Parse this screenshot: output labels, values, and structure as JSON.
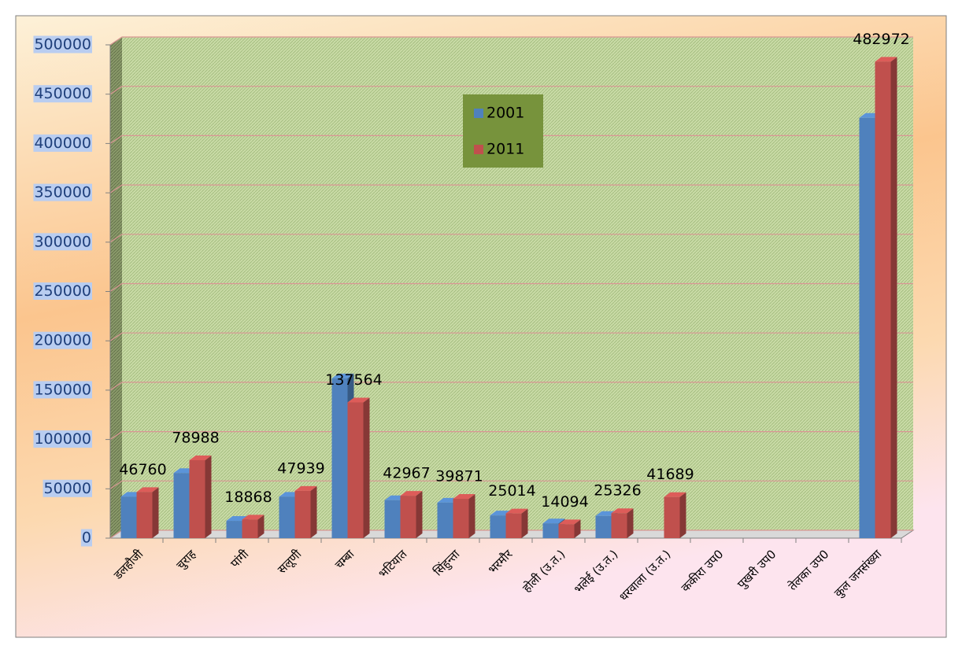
{
  "chart_data": {
    "type": "bar3d",
    "categories": [
      "डलहौजी",
      "चुराह",
      "पांगी",
      "सलूणी",
      "चम्बा",
      "भटियात",
      "सिंहुन्ता",
      "भरमौर",
      "होली (उ.त.)",
      "भलेई (उ.त.)",
      "धरवाला (उ.त.)",
      "ककीरा  उप0",
      "पुखरी उप0",
      "तेलका उप0",
      "कुल जनसंख्या"
    ],
    "series": [
      {
        "name": "2001",
        "color": "#4f81bd",
        "show_values": false,
        "values": [
          42000,
          66000,
          17500,
          42000,
          162000,
          38500,
          36000,
          23000,
          15000,
          22500,
          null,
          null,
          null,
          null,
          426000
        ]
      },
      {
        "name": "2011",
        "color": "#c0504d",
        "show_values": true,
        "values": [
          46760,
          78988,
          18868,
          47939,
          137564,
          42967,
          39871,
          25014,
          14094,
          25326,
          41689,
          null,
          null,
          null,
          482972
        ]
      }
    ],
    "ylim": [
      0,
      500000
    ],
    "yticks": [
      0,
      50000,
      100000,
      150000,
      200000,
      250000,
      300000,
      350000,
      400000,
      450000,
      500000
    ],
    "grid": true,
    "legend": "top-center"
  }
}
